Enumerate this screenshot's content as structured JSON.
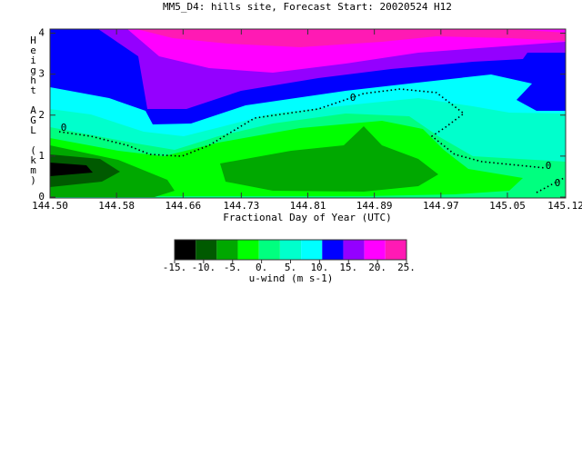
{
  "chart_data": {
    "type": "contour",
    "title": "MM5_D4: hills site,  Forecast Start: 20020524 H12",
    "x_label": "Fractional Day of Year (UTC)",
    "y_label": "Height AGL (km)",
    "xlim": [
      144.5,
      145.12
    ],
    "xticks": [
      {
        "value": 144.5,
        "label": "144.50"
      },
      144.58,
      144.66,
      144.73,
      144.81,
      144.89,
      144.97,
      145.05,
      145.12
    ],
    "ylim": [
      0,
      4.1
    ],
    "yticks": [
      0,
      1,
      2,
      3,
      4
    ],
    "contour_labels": [
      0,
      0,
      0,
      0
    ],
    "colorbar": {
      "label": "u-wind (m s-1)",
      "levels": [
        {
          "value": -15,
          "label": "-15."
        },
        {
          "value": -10,
          "label": "-10."
        },
        {
          "value": -5,
          "label": "-5."
        },
        {
          "value": 0,
          "label": "0."
        },
        {
          "value": 5,
          "label": "5."
        },
        {
          "value": 10,
          "label": "10."
        },
        {
          "value": 15,
          "label": "15."
        },
        {
          "value": 20,
          "label": "20."
        },
        {
          "value": 25,
          "label": "25."
        }
      ],
      "colors": [
        "#000000",
        "#005a00",
        "#00a800",
        "#00ff00",
        "#00ff7f",
        "#00ffcc",
        "#00ffff",
        "#0000ff",
        "#9400ff",
        "#ff00ff",
        "#ff1ab4"
      ]
    }
  }
}
